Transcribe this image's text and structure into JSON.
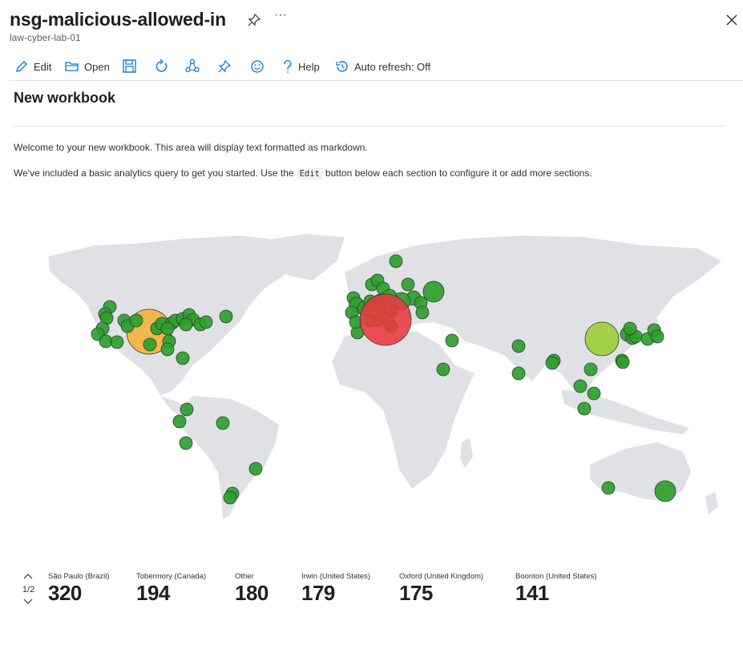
{
  "header": {
    "title": "nsg-malicious-allowed-in",
    "subtitle": "law-cyber-lab-01",
    "more_label": "···"
  },
  "toolbar": {
    "edit_label": "Edit",
    "open_label": "Open",
    "help_label": "Help",
    "auto_refresh_label": "Auto refresh: Off"
  },
  "section": {
    "title": "New workbook",
    "para1": "Welcome to your new workbook. This area will display text formatted as markdown.",
    "para2_before": "We've included a basic analytics query to get you started. Use the",
    "para2_code": "Edit",
    "para2_after": "button below each section to configure it or add more sections."
  },
  "map": {
    "colors": {
      "low": "#2ca02c",
      "mid": "#9acd32",
      "high": "#f2b134",
      "top": "#e8383d"
    }
  },
  "legend": {
    "page": "1/2",
    "items": [
      {
        "label": "São Paulo (Brazil)",
        "value": "320"
      },
      {
        "label": "Tobermory (Canada)",
        "value": "194"
      },
      {
        "label": "Other",
        "value": "180"
      },
      {
        "label": "Irwin (United States)",
        "value": "179"
      },
      {
        "label": "Oxford (United Kingdom)",
        "value": "175"
      },
      {
        "label": "Boonton (United States)",
        "value": "141"
      }
    ]
  }
}
